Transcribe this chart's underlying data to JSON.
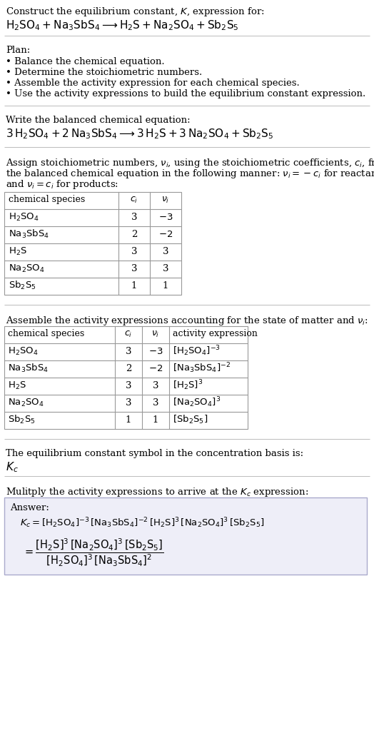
{
  "bg_color": "#ffffff",
  "text_color": "#000000",
  "title_line1": "Construct the equilibrium constant, $K$, expression for:",
  "title_line2": "$\\mathrm{H_2SO_4 + Na_3SbS_4 \\longrightarrow H_2S + Na_2SO_4 + Sb_2S_5}$",
  "plan_header": "Plan:",
  "plan_items": [
    "• Balance the chemical equation.",
    "• Determine the stoichiometric numbers.",
    "• Assemble the activity expression for each chemical species.",
    "• Use the activity expressions to build the equilibrium constant expression."
  ],
  "balanced_header": "Write the balanced chemical equation:",
  "balanced_eq": "$3\\,\\mathrm{H_2SO_4 + 2\\,Na_3SbS_4 \\longrightarrow 3\\,H_2S + 3\\,Na_2SO_4 + Sb_2S_5}$",
  "stoich_lines": [
    "Assign stoichiometric numbers, $\\nu_i$, using the stoichiometric coefficients, $c_i$, from",
    "the balanced chemical equation in the following manner: $\\nu_i = -c_i$ for reactants",
    "and $\\nu_i = c_i$ for products:"
  ],
  "table1_headers": [
    "chemical species",
    "$c_i$",
    "$\\nu_i$"
  ],
  "table1_rows": [
    [
      "$\\mathrm{H_2SO_4}$",
      "3",
      "$-3$"
    ],
    [
      "$\\mathrm{Na_3SbS_4}$",
      "2",
      "$-2$"
    ],
    [
      "$\\mathrm{H_2S}$",
      "3",
      "3"
    ],
    [
      "$\\mathrm{Na_2SO_4}$",
      "3",
      "3"
    ],
    [
      "$\\mathrm{Sb_2S_5}$",
      "1",
      "1"
    ]
  ],
  "activity_header": "Assemble the activity expressions accounting for the state of matter and $\\nu_i$:",
  "table2_headers": [
    "chemical species",
    "$c_i$",
    "$\\nu_i$",
    "activity expression"
  ],
  "table2_rows": [
    [
      "$\\mathrm{H_2SO_4}$",
      "3",
      "$-3$",
      "$[\\mathrm{H_2SO_4}]^{-3}$"
    ],
    [
      "$\\mathrm{Na_3SbS_4}$",
      "2",
      "$-2$",
      "$[\\mathrm{Na_3SbS_4}]^{-2}$"
    ],
    [
      "$\\mathrm{H_2S}$",
      "3",
      "3",
      "$[\\mathrm{H_2S}]^{3}$"
    ],
    [
      "$\\mathrm{Na_2SO_4}$",
      "3",
      "3",
      "$[\\mathrm{Na_2SO_4}]^{3}$"
    ],
    [
      "$\\mathrm{Sb_2S_5}$",
      "1",
      "1",
      "$[\\mathrm{Sb_2S_5}]$"
    ]
  ],
  "kc_header": "The equilibrium constant symbol in the concentration basis is:",
  "kc_symbol": "$K_c$",
  "multiply_header": "Mulitply the activity expressions to arrive at the $K_c$ expression:",
  "answer_label": "Answer:",
  "answer_line1": "$K_c = [\\mathrm{H_2SO_4}]^{-3}\\,[\\mathrm{Na_3SbS_4}]^{-2}\\,[\\mathrm{H_2S}]^3\\,[\\mathrm{Na_2SO_4}]^3\\,[\\mathrm{Sb_2S_5}]$",
  "answer_line2": "$= \\dfrac{[\\mathrm{H_2S}]^3\\,[\\mathrm{Na_2SO_4}]^3\\,[\\mathrm{Sb_2S_5}]}{[\\mathrm{H_2SO_4}]^3\\,[\\mathrm{Na_3SbS_4}]^2}$"
}
